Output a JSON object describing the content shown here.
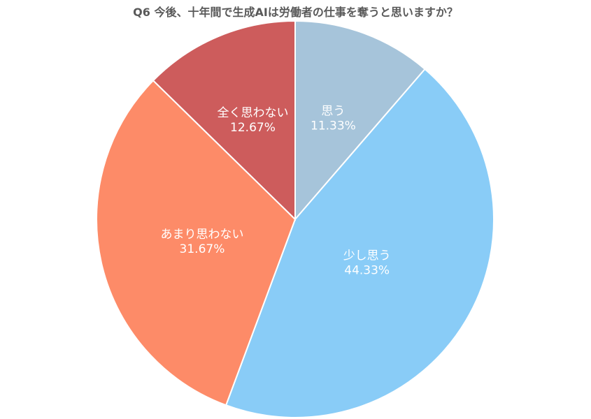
{
  "chart_data": {
    "type": "pie",
    "title": "Q6 今後、十年間で生成AIは労働者の仕事を奪うと思いますか？",
    "slices": [
      {
        "label": "思う",
        "value": 11.33,
        "value_text": "11.33%",
        "color": "#a6c4da"
      },
      {
        "label": "少し思う",
        "value": 44.33,
        "value_text": "44.33%",
        "color": "#89ccf7"
      },
      {
        "label": "あまり思わない",
        "value": 31.67,
        "value_text": "31.67%",
        "color": "#fd8b68"
      },
      {
        "label": "全く思わない",
        "value": 12.67,
        "value_text": "12.67%",
        "color": "#cd5c5c"
      }
    ],
    "start_angle": "12 o'clock",
    "direction": "clockwise",
    "legend": "none"
  }
}
